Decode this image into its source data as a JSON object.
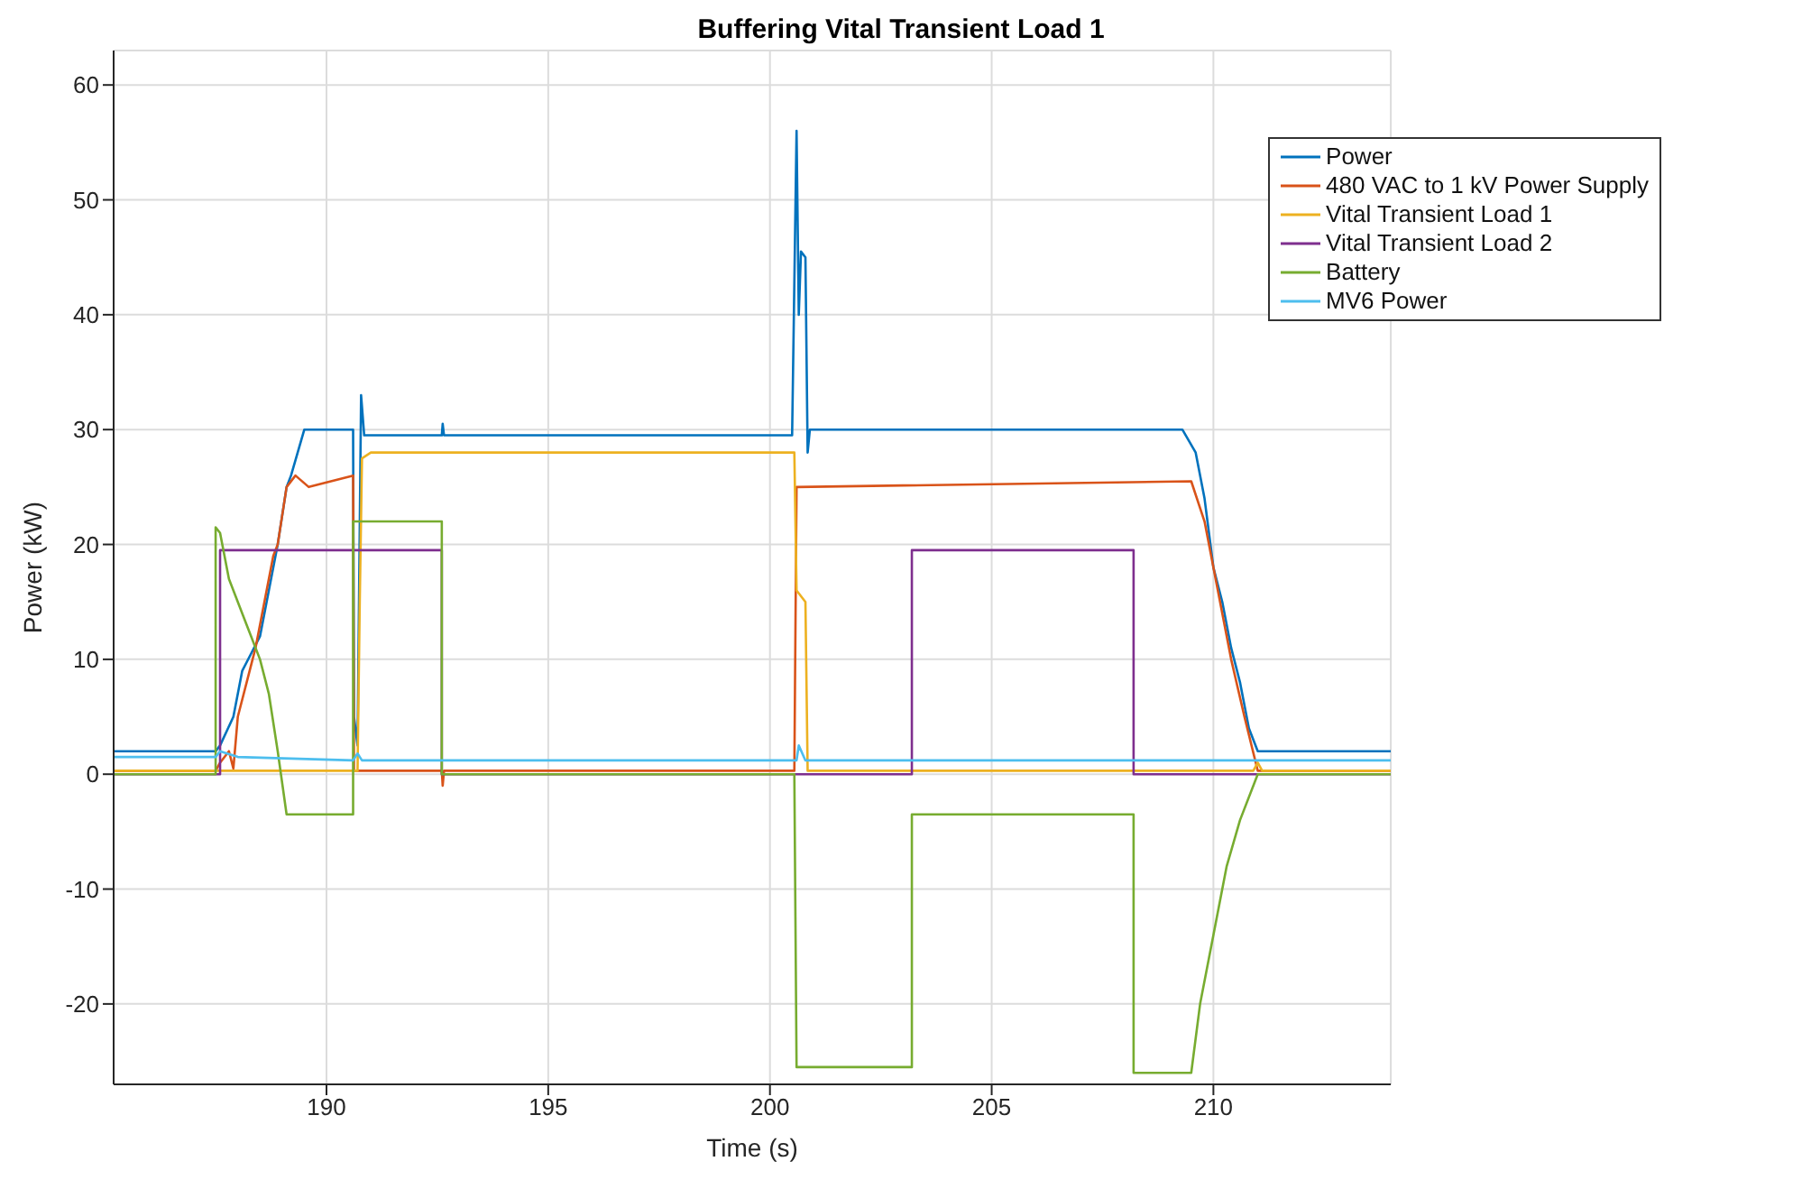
{
  "chart_data": {
    "type": "line",
    "title": "Buffering Vital Transient Load 1",
    "xlabel": "Time (s)",
    "ylabel": "Power (kW)",
    "xlim": [
      185.2,
      214
    ],
    "xticks": [
      190,
      195,
      200,
      205,
      210
    ],
    "ylim": [
      -27,
      63
    ],
    "yticks": [
      -20,
      -10,
      0,
      10,
      20,
      30,
      40,
      50,
      60
    ],
    "grid": true,
    "legend": "top right",
    "marker": "none",
    "line_style": "solid",
    "series": [
      {
        "name": "Power",
        "color": "#0072bd",
        "x": [
          185.2,
          187.5,
          187.6,
          187.9,
          188.1,
          188.3,
          188.5,
          188.7,
          188.9,
          189.1,
          189.2,
          189.5,
          190.6,
          190.62,
          190.7,
          190.78,
          190.85,
          192.6,
          192.62,
          192.65,
          200.5,
          200.6,
          200.65,
          200.7,
          200.8,
          200.85,
          200.9,
          209.3,
          209.6,
          209.8,
          210,
          210.2,
          210.4,
          210.6,
          210.8,
          211,
          211.2,
          214
        ],
        "values": [
          2,
          2,
          2.5,
          5,
          9,
          10.5,
          12,
          16,
          20,
          25,
          26,
          30,
          30,
          5,
          2.5,
          33,
          29.5,
          29.5,
          30.5,
          29.5,
          29.5,
          56,
          40,
          45.5,
          45,
          28,
          30,
          30,
          28,
          24,
          18,
          15,
          11,
          8,
          4,
          2,
          2,
          2
        ]
      },
      {
        "name": "480 VAC to 1 kV Power Supply",
        "color": "#d95319",
        "x": [
          185.2,
          187.5,
          187.6,
          187.8,
          187.9,
          188,
          188.2,
          188.4,
          188.6,
          188.8,
          188.9,
          189.1,
          189.3,
          189.6,
          190.6,
          190.62,
          192.6,
          192.62,
          192.65,
          200.55,
          200.6,
          209.5,
          209.8,
          210.1,
          210.4,
          210.7,
          211,
          214
        ],
        "values": [
          0.3,
          0.3,
          1,
          2,
          0.5,
          5,
          8,
          11,
          15,
          19,
          20,
          25,
          26,
          25,
          26,
          0.3,
          0.3,
          -1,
          0.3,
          0.3,
          25,
          25.5,
          22,
          16,
          10,
          5,
          0.3,
          0.3
        ]
      },
      {
        "name": "Vital Transient Load 1",
        "color": "#edb120",
        "x": [
          185.2,
          190.7,
          190.75,
          190.8,
          191,
          200.55,
          200.6,
          200.8,
          200.85,
          210.9,
          211,
          211.1,
          214
        ],
        "values": [
          0.3,
          0.3,
          15,
          27.5,
          28,
          28,
          16,
          15,
          0.3,
          0.3,
          1,
          0.3,
          0.3
        ]
      },
      {
        "name": "Vital Transient Load 2",
        "color": "#7e2f8e",
        "x": [
          185.2,
          187.6,
          187.6,
          192.6,
          192.6,
          203.2,
          203.2,
          208.2,
          208.2,
          214
        ],
        "values": [
          0,
          0,
          19.5,
          19.5,
          0,
          0,
          19.5,
          19.5,
          0,
          0
        ]
      },
      {
        "name": "Battery",
        "color": "#77ac30",
        "x": [
          185.2,
          187.5,
          187.5,
          187.6,
          187.8,
          188.2,
          188.5,
          188.7,
          188.9,
          189.1,
          190.6,
          190.6,
          192.6,
          192.6,
          200.55,
          200.6,
          203.2,
          203.2,
          208.2,
          208.2,
          209.5,
          209.7,
          210,
          210.3,
          210.6,
          211,
          214
        ],
        "values": [
          0,
          0,
          21.5,
          21,
          17,
          13,
          10,
          7,
          2,
          -3.5,
          -3.5,
          22,
          22,
          0,
          0,
          -25.5,
          -25.5,
          -3.5,
          -3.5,
          -26,
          -26,
          -20,
          -14,
          -8,
          -4,
          0,
          0
        ]
      },
      {
        "name": "MV6 Power",
        "color": "#4dbeee",
        "x": [
          185.2,
          187.5,
          187.6,
          188,
          190.6,
          190.7,
          190.8,
          200.6,
          200.65,
          200.8,
          214
        ],
        "values": [
          1.5,
          1.5,
          2,
          1.5,
          1.2,
          1.8,
          1.2,
          1.2,
          2.5,
          1.2,
          1.2
        ]
      }
    ]
  }
}
